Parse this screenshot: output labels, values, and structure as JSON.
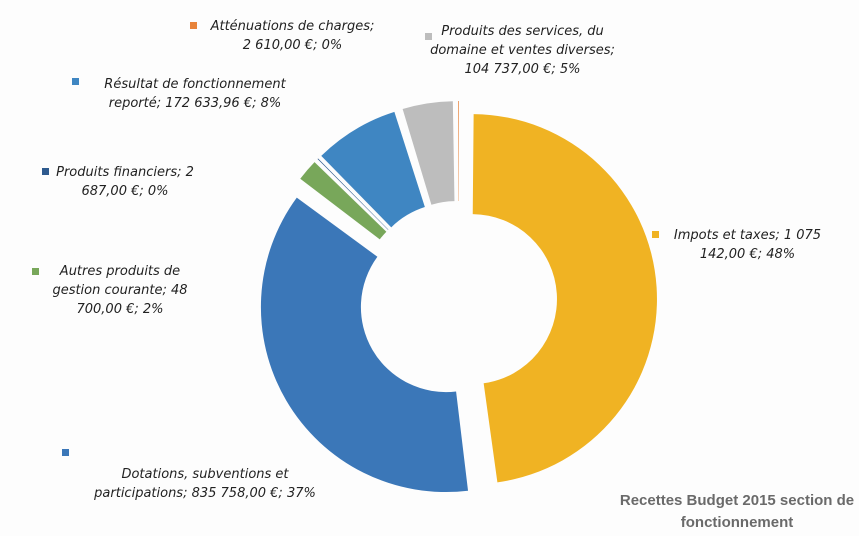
{
  "chart_data": {
    "type": "donut",
    "title": "Recettes Budget 2015 section de fonctionnement",
    "labels": [
      "Impots et taxes; 1 075 142,00 €; 48%",
      "Dotations, subventions et participations; 835 758,00 €; 37%",
      "Autres produits de gestion courante; 48 700,00 €; 2%",
      "Produits financiers; 2 687,00 €; 0%",
      "Résultat de fonctionnement reporté; 172 633,96 €; 8%",
      "Produits des services, du domaine et ventes diverses; 104 737,00 €; 5%",
      "Atténuations de charges; 2 610,00 €; 0%"
    ],
    "values": [
      1075142,
      835758,
      48700,
      2687,
      172633.96,
      104737,
      2610
    ],
    "colors": [
      "#f0b323",
      "#3b77b8",
      "#78a75a",
      "#2e5a8e",
      "#3f86c2",
      "#bdbdbd",
      "#e8833a"
    ]
  }
}
